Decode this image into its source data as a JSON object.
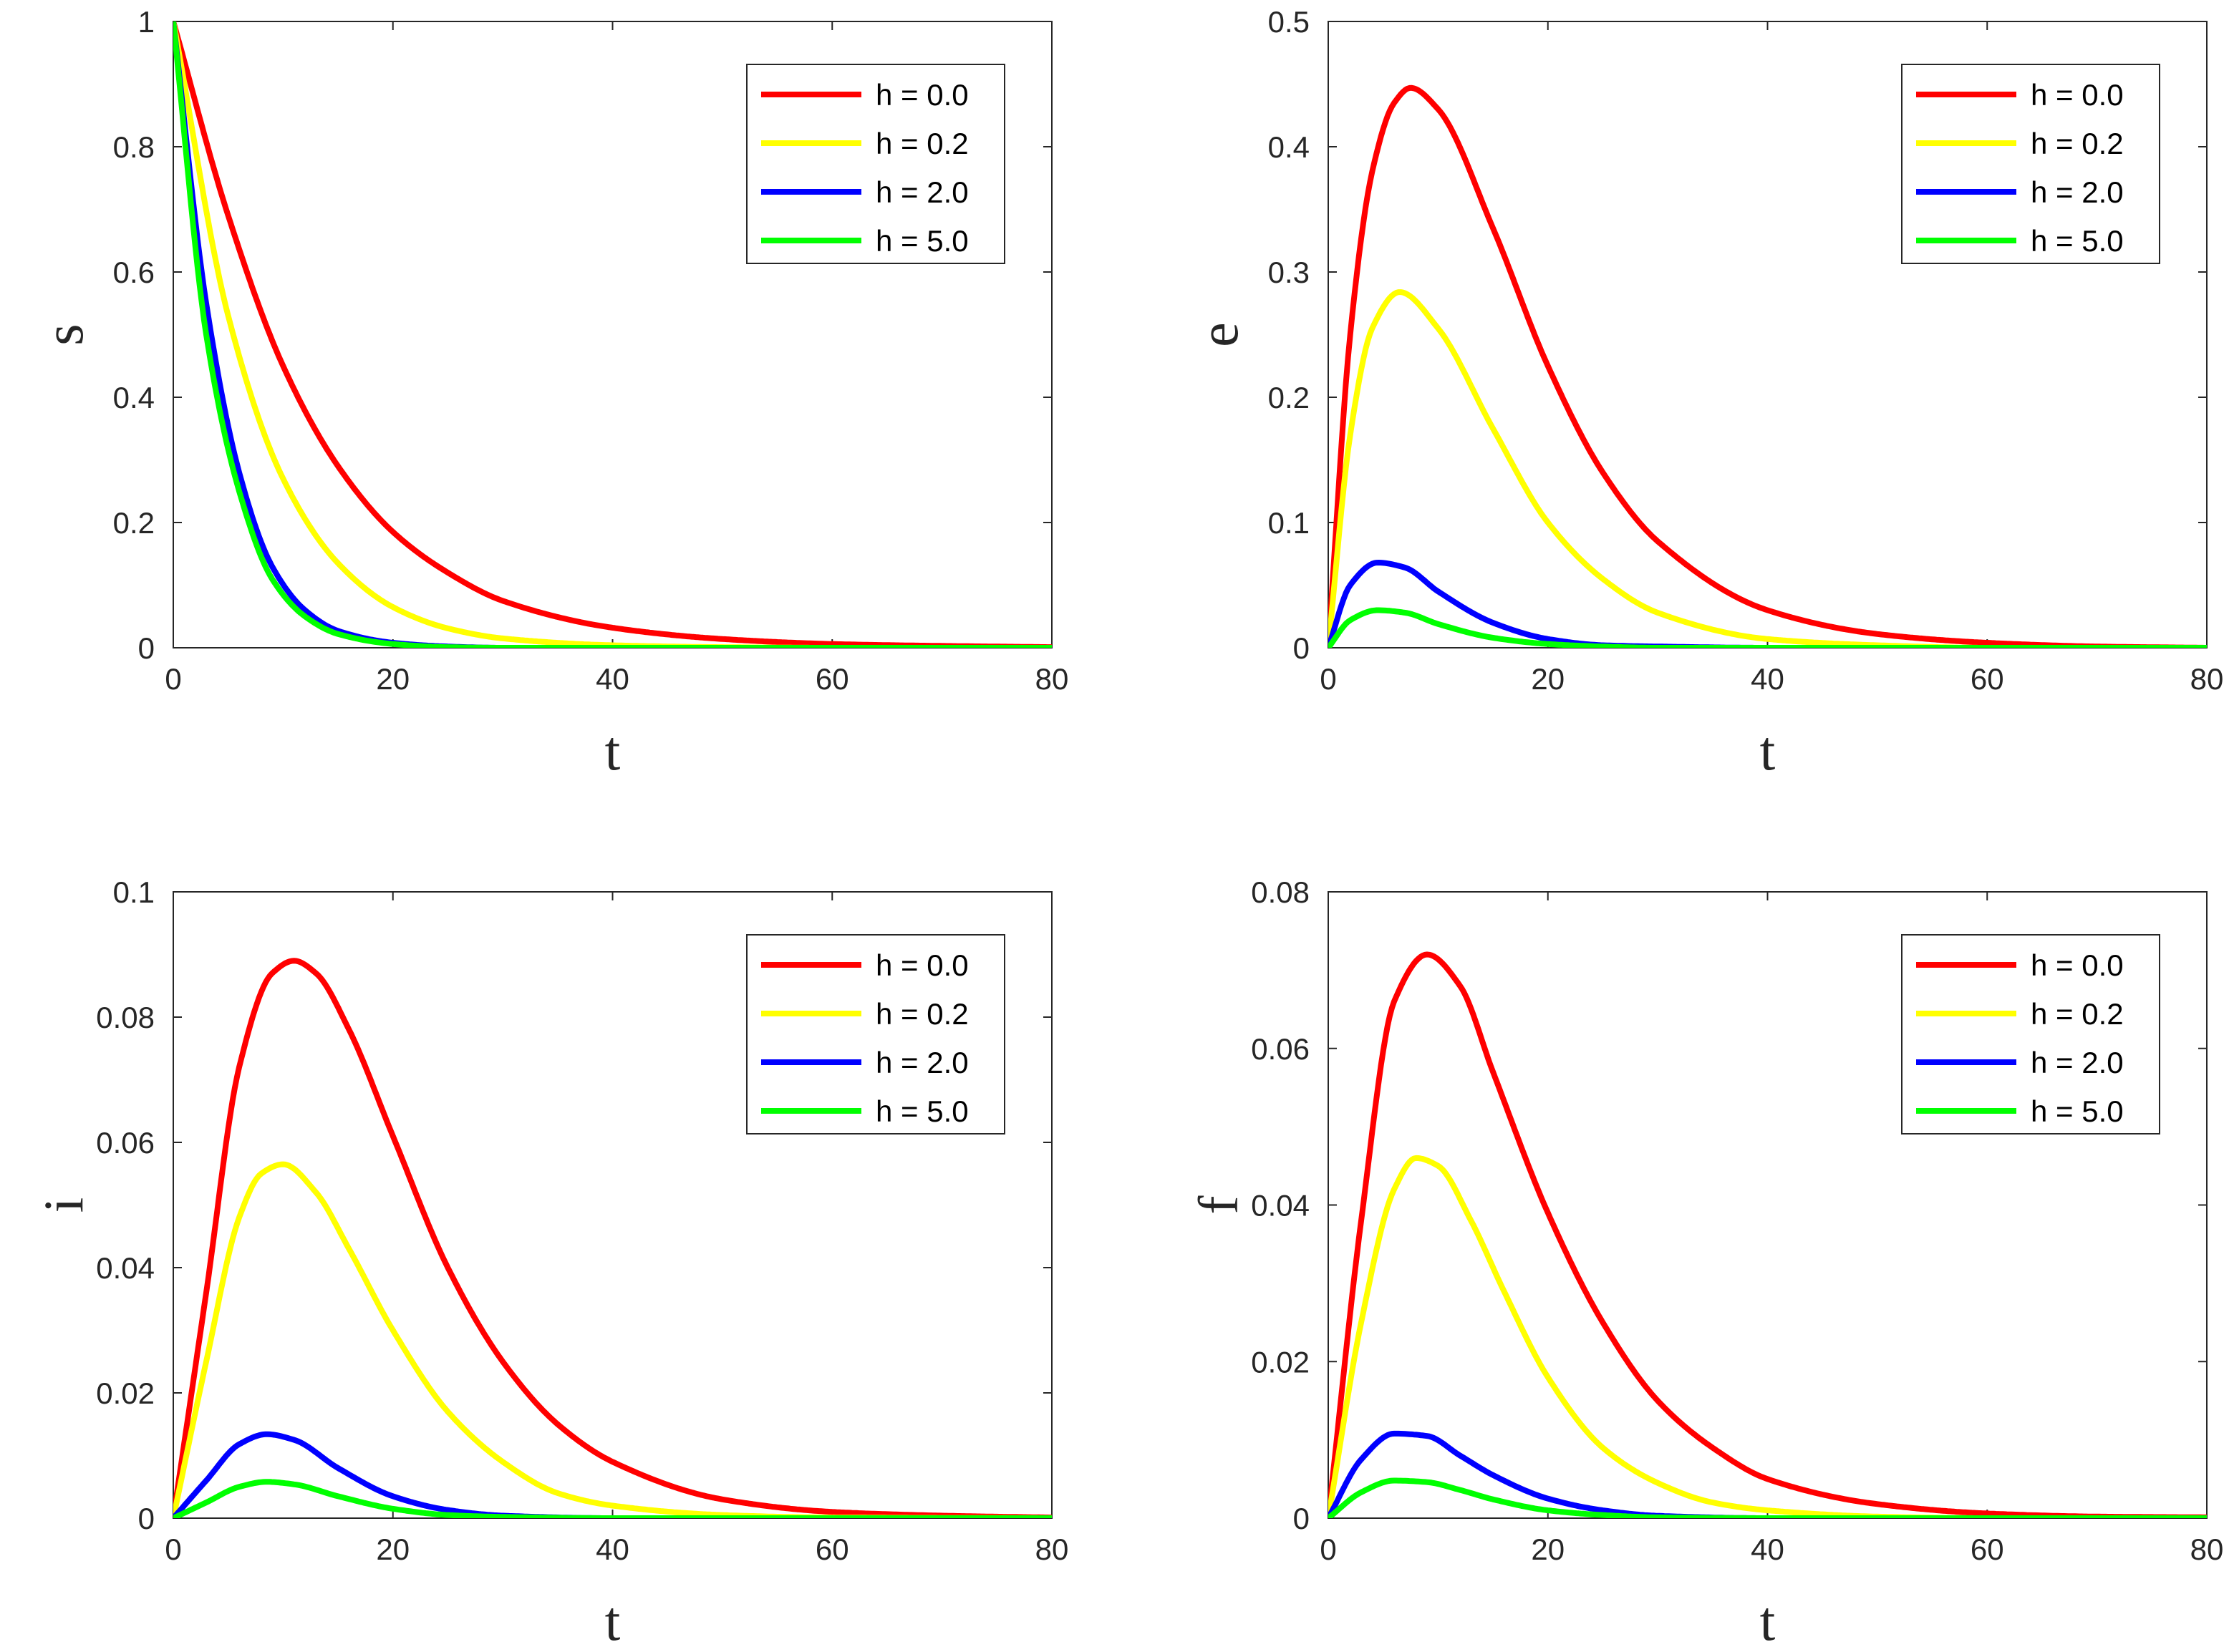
{
  "chart_data": [
    {
      "type": "line",
      "title": "",
      "xlabel": "t",
      "ylabel": "s",
      "xlim": [
        0,
        80
      ],
      "ylim": [
        0,
        1
      ],
      "xticks": [
        "0",
        "20",
        "40",
        "60",
        "80"
      ],
      "yticks": [
        "0",
        "0.2",
        "0.4",
        "0.6",
        "0.8",
        "1"
      ],
      "legend_position": "top-right",
      "series": [
        {
          "name": "h = 0.0",
          "color": "#ff0000",
          "x": [
            0,
            5,
            10,
            15,
            20,
            25,
            30,
            40,
            50,
            60,
            70,
            80
          ],
          "y": [
            1,
            0.69,
            0.45,
            0.29,
            0.185,
            0.12,
            0.075,
            0.032,
            0.014,
            0.006,
            0.003,
            0.001
          ]
        },
        {
          "name": "h = 0.2",
          "color": "#ffff00",
          "x": [
            0,
            5,
            10,
            15,
            20,
            25,
            30,
            40,
            50,
            60,
            70,
            80
          ],
          "y": [
            1,
            0.53,
            0.27,
            0.135,
            0.065,
            0.031,
            0.015,
            0.004,
            0.001,
            0,
            0,
            0
          ]
        },
        {
          "name": "h = 2.0",
          "color": "#0000ff",
          "x": [
            0,
            3,
            6,
            9,
            12,
            15,
            20,
            25,
            30,
            40,
            60,
            80
          ],
          "y": [
            1,
            0.55,
            0.28,
            0.13,
            0.06,
            0.027,
            0.008,
            0.002,
            0,
            0,
            0,
            0
          ]
        },
        {
          "name": "h = 5.0",
          "color": "#00ff00",
          "x": [
            0,
            3,
            6,
            9,
            12,
            15,
            20,
            25,
            30,
            40,
            60,
            80
          ],
          "y": [
            1,
            0.5,
            0.25,
            0.11,
            0.05,
            0.022,
            0.006,
            0.001,
            0,
            0,
            0,
            0
          ]
        }
      ]
    },
    {
      "type": "line",
      "title": "",
      "xlabel": "t",
      "ylabel": "e",
      "xlim": [
        0,
        80
      ],
      "ylim": [
        0,
        0.5
      ],
      "xticks": [
        "0",
        "20",
        "40",
        "60",
        "80"
      ],
      "yticks": [
        "0",
        "0.1",
        "0.2",
        "0.3",
        "0.4",
        "0.5"
      ],
      "legend_position": "top-right",
      "series": [
        {
          "name": "h = 0.0",
          "color": "#ff0000",
          "x": [
            0,
            2,
            4,
            6,
            7.5,
            10,
            15,
            20,
            25,
            30,
            40,
            50,
            60,
            70,
            80
          ],
          "y": [
            0,
            0.25,
            0.38,
            0.435,
            0.447,
            0.43,
            0.335,
            0.225,
            0.14,
            0.085,
            0.03,
            0.011,
            0.004,
            0.001,
            0
          ]
        },
        {
          "name": "h = 0.2",
          "color": "#ffff00",
          "x": [
            0,
            2,
            4,
            6.5,
            10,
            15,
            20,
            25,
            30,
            40,
            50,
            60,
            80
          ],
          "y": [
            0,
            0.17,
            0.255,
            0.284,
            0.255,
            0.175,
            0.1,
            0.055,
            0.028,
            0.007,
            0.002,
            0,
            0
          ]
        },
        {
          "name": "h = 2.0",
          "color": "#0000ff",
          "x": [
            0,
            2,
            4.5,
            7,
            10,
            15,
            20,
            25,
            30,
            40,
            60,
            80
          ],
          "y": [
            0,
            0.05,
            0.068,
            0.064,
            0.045,
            0.02,
            0.007,
            0.002,
            0.001,
            0,
            0,
            0
          ]
        },
        {
          "name": "h = 5.0",
          "color": "#00ff00",
          "x": [
            0,
            2,
            4.5,
            7,
            10,
            15,
            20,
            25,
            30,
            40,
            60,
            80
          ],
          "y": [
            0,
            0.022,
            0.03,
            0.028,
            0.019,
            0.008,
            0.003,
            0.001,
            0,
            0,
            0,
            0
          ]
        }
      ]
    },
    {
      "type": "line",
      "title": "",
      "xlabel": "t",
      "ylabel": "i",
      "xlim": [
        0,
        80
      ],
      "ylim": [
        0,
        0.1
      ],
      "xticks": [
        "0",
        "20",
        "40",
        "60",
        "80"
      ],
      "yticks": [
        "0",
        "0.02",
        "0.04",
        "0.06",
        "0.08",
        "0.1"
      ],
      "legend_position": "top-right",
      "series": [
        {
          "name": "h = 0.0",
          "color": "#ff0000",
          "x": [
            0,
            3,
            6,
            9,
            11,
            13,
            16,
            20,
            25,
            30,
            35,
            40,
            50,
            60,
            70,
            80
          ],
          "y": [
            0,
            0.036,
            0.072,
            0.087,
            0.089,
            0.087,
            0.078,
            0.061,
            0.04,
            0.025,
            0.015,
            0.009,
            0.003,
            0.001,
            0.0004,
            0.0001
          ]
        },
        {
          "name": "h = 0.2",
          "color": "#ffff00",
          "x": [
            0,
            3,
            6,
            8,
            10,
            13,
            16,
            20,
            25,
            30,
            35,
            40,
            50,
            60,
            80
          ],
          "y": [
            0,
            0.025,
            0.048,
            0.055,
            0.0565,
            0.052,
            0.043,
            0.03,
            0.017,
            0.009,
            0.004,
            0.002,
            0.0005,
            0.0001,
            0
          ]
        },
        {
          "name": "h = 2.0",
          "color": "#0000ff",
          "x": [
            0,
            3,
            6,
            8.5,
            11,
            15,
            20,
            25,
            30,
            40,
            50,
            80
          ],
          "y": [
            0,
            0.006,
            0.0118,
            0.0134,
            0.0125,
            0.008,
            0.0035,
            0.0013,
            0.0004,
            0,
            0,
            0
          ]
        },
        {
          "name": "h = 5.0",
          "color": "#00ff00",
          "x": [
            0,
            3,
            6,
            8.5,
            11,
            15,
            20,
            25,
            30,
            40,
            50,
            80
          ],
          "y": [
            0,
            0.0025,
            0.005,
            0.0058,
            0.0054,
            0.0035,
            0.0015,
            0.0005,
            0.0002,
            0,
            0,
            0
          ]
        }
      ]
    },
    {
      "type": "line",
      "title": "",
      "xlabel": "t",
      "ylabel": "f",
      "xlim": [
        0,
        80
      ],
      "ylim": [
        0,
        0.08
      ],
      "xticks": [
        "0",
        "20",
        "40",
        "60",
        "80"
      ],
      "yticks": [
        "0",
        "0.02",
        "0.04",
        "0.06",
        "0.08"
      ],
      "legend_position": "top-right",
      "series": [
        {
          "name": "h = 0.0",
          "color": "#ff0000",
          "x": [
            0,
            3,
            6,
            9,
            12,
            15,
            20,
            25,
            30,
            35,
            40,
            50,
            60,
            70,
            80
          ],
          "y": [
            0,
            0.038,
            0.066,
            0.072,
            0.068,
            0.057,
            0.039,
            0.025,
            0.015,
            0.009,
            0.005,
            0.0018,
            0.0006,
            0.0002,
            0.0001
          ]
        },
        {
          "name": "h = 0.2",
          "color": "#ffff00",
          "x": [
            0,
            3,
            6,
            8,
            10,
            13,
            16,
            20,
            25,
            30,
            35,
            40,
            50,
            60,
            80
          ],
          "y": [
            0,
            0.025,
            0.042,
            0.046,
            0.045,
            0.038,
            0.029,
            0.018,
            0.009,
            0.0045,
            0.002,
            0.001,
            0.0002,
            0,
            0
          ]
        },
        {
          "name": "h = 2.0",
          "color": "#0000ff",
          "x": [
            0,
            3,
            6,
            9,
            12,
            15,
            20,
            25,
            30,
            40,
            50,
            80
          ],
          "y": [
            0,
            0.0075,
            0.0108,
            0.0105,
            0.008,
            0.0055,
            0.0025,
            0.001,
            0.0003,
            0,
            0,
            0
          ]
        },
        {
          "name": "h = 5.0",
          "color": "#00ff00",
          "x": [
            0,
            3,
            6,
            9,
            12,
            15,
            20,
            25,
            30,
            40,
            50,
            80
          ],
          "y": [
            0,
            0.0033,
            0.0048,
            0.0046,
            0.0036,
            0.0024,
            0.001,
            0.0004,
            0.0001,
            0,
            0,
            0
          ]
        }
      ]
    }
  ]
}
